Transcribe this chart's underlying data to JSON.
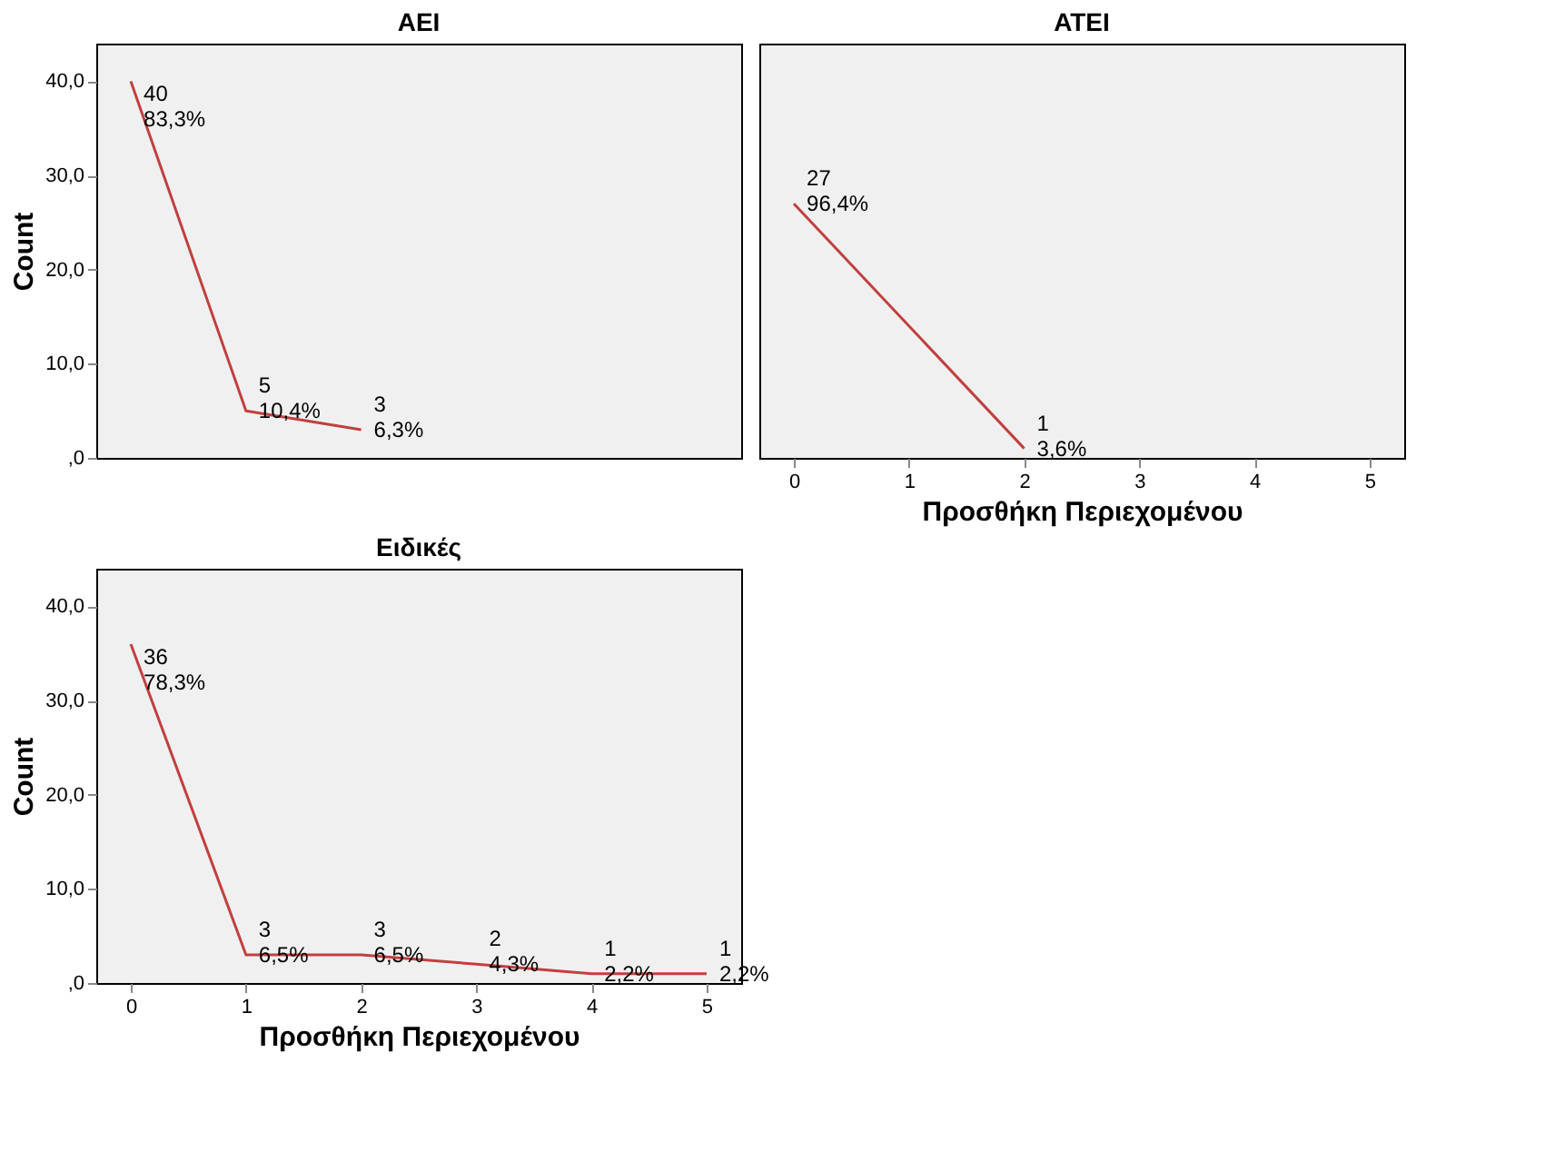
{
  "chart_data": [
    {
      "type": "line",
      "title": "ΑΕΙ",
      "ylabel": "Count",
      "x": [
        0,
        1,
        2
      ],
      "xlim": [
        -0.3,
        5.3
      ],
      "xticks": [
        0,
        1,
        2,
        3,
        4,
        5
      ],
      "ylim": [
        0,
        44
      ],
      "yticks": [
        {
          "value": 0,
          "label": ",0"
        },
        {
          "value": 10,
          "label": "10,0"
        },
        {
          "value": 20,
          "label": "20,0"
        },
        {
          "value": 30,
          "label": "30,0"
        },
        {
          "value": 40,
          "label": "40,0"
        }
      ],
      "tick_labels": "y",
      "grid": false,
      "series": [
        {
          "color": "#c0403f",
          "values": [
            40,
            5,
            3
          ],
          "value_labels": [
            "40\n83,3%",
            "5\n10,4%",
            "3\n6,3%"
          ]
        }
      ]
    },
    {
      "type": "line",
      "title": "ΑΤΕΙ",
      "xlabel": "Προσθήκη Περιεχομένου",
      "x": [
        0,
        2
      ],
      "xlim": [
        -0.3,
        5.3
      ],
      "xticks": [
        0,
        1,
        2,
        3,
        4,
        5
      ],
      "ylim": [
        0,
        44
      ],
      "tick_labels": "x",
      "grid": false,
      "series": [
        {
          "color": "#c0403f",
          "values": [
            27,
            1
          ],
          "value_labels": [
            "27\n96,4%",
            "1\n3,6%"
          ]
        }
      ]
    },
    {
      "type": "line",
      "title": "Ειδικές",
      "xlabel": "Προσθήκη Περιεχομένου",
      "ylabel": "Count",
      "x": [
        0,
        1,
        2,
        3,
        4,
        5
      ],
      "xlim": [
        -0.3,
        5.3
      ],
      "xticks": [
        0,
        1,
        2,
        3,
        4,
        5
      ],
      "ylim": [
        0,
        44
      ],
      "yticks": [
        {
          "value": 0,
          "label": ",0"
        },
        {
          "value": 10,
          "label": "10,0"
        },
        {
          "value": 20,
          "label": "20,0"
        },
        {
          "value": 30,
          "label": "30,0"
        },
        {
          "value": 40,
          "label": "40,0"
        }
      ],
      "grid": false,
      "series": [
        {
          "color": "#c0403f",
          "values": [
            36,
            3,
            3,
            2,
            1,
            1
          ],
          "value_labels": [
            "36\n78,3%",
            "3\n6,5%",
            "3\n6,5%",
            "2\n4,3%",
            "1\n2,2%",
            "1\n2,2%"
          ]
        }
      ]
    }
  ]
}
